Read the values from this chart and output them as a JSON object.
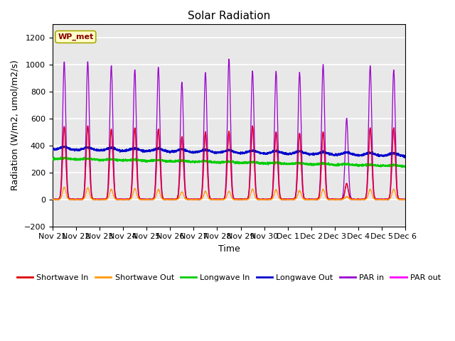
{
  "title": "Solar Radiation",
  "ylabel": "Radiation (W/m2, umol/m2/s)",
  "xlabel": "Time",
  "ylim": [
    -200,
    1300
  ],
  "yticks": [
    -200,
    0,
    200,
    400,
    600,
    800,
    1000,
    1200
  ],
  "x_tick_labels": [
    "Nov 21",
    "Nov 22",
    "Nov 23",
    "Nov 24",
    "Nov 25",
    "Nov 26",
    "Nov 27",
    "Nov 28",
    "Nov 29",
    "Nov 30",
    "Dec 1",
    "Dec 2",
    "Dec 3",
    "Dec 4",
    "Dec 5",
    "Dec 6"
  ],
  "colors": {
    "shortwave_in": "#dd0000",
    "shortwave_out": "#ff9900",
    "longwave_in": "#00cc00",
    "longwave_out": "#0000cc",
    "par_in": "#9900cc",
    "par_out": "#ff00ff"
  },
  "legend_label": "WP_met",
  "background_color": "#e8e8e8",
  "grid_color": "#ffffff",
  "n_days": 15,
  "peaks_par_in": [
    1020,
    1020,
    990,
    960,
    980,
    870,
    940,
    1040,
    950,
    950,
    940,
    1000,
    600,
    990,
    960
  ],
  "peaks_sw_in": [
    540,
    545,
    520,
    530,
    520,
    465,
    500,
    505,
    545,
    500,
    490,
    500,
    115,
    530,
    530
  ],
  "peaks_sw_out": [
    90,
    85,
    75,
    80,
    75,
    55,
    60,
    60,
    75,
    70,
    65,
    75,
    20,
    75,
    75
  ],
  "longwave_in_base": 300,
  "longwave_out_base": 370,
  "title_fontsize": 11,
  "label_fontsize": 9,
  "tick_fontsize": 8
}
